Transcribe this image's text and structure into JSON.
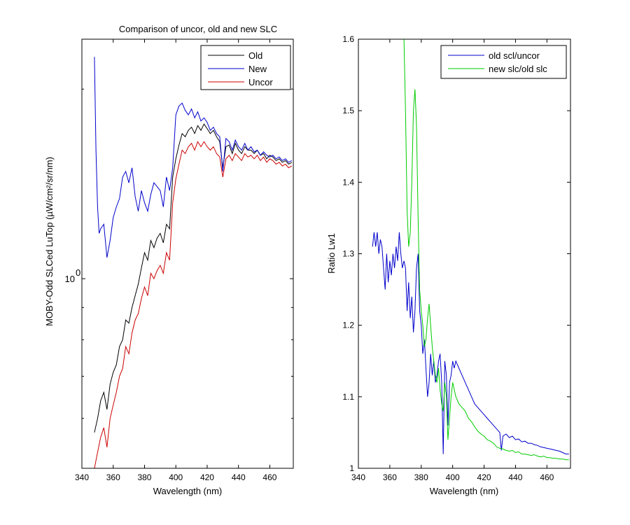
{
  "chart_data": [
    {
      "type": "line",
      "title": "Comparison of uncor, old and new SLC",
      "xlabel": "Wavelength (nm)",
      "ylabel": "MOBY-Odd SLCed LuTop (µW/cm²/sr/nm)",
      "yscale": "log",
      "xlim": [
        340,
        475
      ],
      "ylim": [
        0.5,
        2.4
      ],
      "x_ticks": [
        "340",
        "360",
        "380",
        "400",
        "420",
        "440",
        "460"
      ],
      "y_tick_base": "10",
      "y_tick_exp": "0",
      "y_tick_value": 1.0,
      "grid": false,
      "legend_position": "top-right",
      "series": [
        {
          "name": "Old",
          "color": "#000000",
          "x": [
            348,
            350,
            352,
            354,
            356,
            358,
            360,
            362,
            364,
            366,
            368,
            370,
            372,
            374,
            376,
            378,
            380,
            382,
            384,
            386,
            388,
            390,
            392,
            394,
            396,
            398,
            400,
            402,
            404,
            406,
            408,
            410,
            412,
            414,
            416,
            418,
            420,
            422,
            424,
            426,
            428,
            430,
            432,
            434,
            436,
            438,
            440,
            442,
            444,
            446,
            448,
            450,
            452,
            454,
            456,
            458,
            460,
            462,
            464,
            466,
            468,
            470,
            472,
            474
          ],
          "y": [
            0.57,
            0.6,
            0.64,
            0.66,
            0.62,
            0.68,
            0.71,
            0.73,
            0.78,
            0.8,
            0.86,
            0.85,
            0.9,
            0.94,
            0.98,
            1.04,
            1.1,
            1.07,
            1.15,
            1.12,
            1.16,
            1.18,
            1.14,
            1.22,
            1.2,
            1.45,
            1.55,
            1.63,
            1.7,
            1.68,
            1.72,
            1.74,
            1.7,
            1.75,
            1.72,
            1.76,
            1.73,
            1.7,
            1.72,
            1.68,
            1.65,
            1.5,
            1.62,
            1.63,
            1.58,
            1.64,
            1.6,
            1.58,
            1.62,
            1.6,
            1.6,
            1.58,
            1.6,
            1.57,
            1.58,
            1.55,
            1.57,
            1.56,
            1.54,
            1.55,
            1.53,
            1.54,
            1.52,
            1.53
          ]
        },
        {
          "name": "New",
          "color": "#0000cc",
          "x": [
            348,
            349,
            350,
            351,
            352,
            354,
            356,
            358,
            360,
            362,
            364,
            366,
            368,
            370,
            372,
            374,
            376,
            378,
            380,
            382,
            384,
            386,
            388,
            390,
            392,
            394,
            396,
            398,
            400,
            402,
            404,
            406,
            408,
            410,
            412,
            414,
            416,
            418,
            420,
            422,
            424,
            426,
            428,
            430,
            432,
            434,
            436,
            438,
            440,
            442,
            444,
            446,
            448,
            450,
            452,
            454,
            456,
            458,
            460,
            462,
            464,
            466,
            468,
            470,
            472,
            474
          ],
          "y": [
            2.25,
            1.6,
            1.3,
            1.18,
            1.2,
            1.22,
            1.08,
            1.15,
            1.25,
            1.3,
            1.34,
            1.45,
            1.48,
            1.42,
            1.5,
            1.35,
            1.28,
            1.38,
            1.32,
            1.28,
            1.36,
            1.42,
            1.4,
            1.38,
            1.3,
            1.45,
            1.38,
            1.5,
            1.82,
            1.88,
            1.9,
            1.85,
            1.82,
            1.86,
            1.8,
            1.84,
            1.78,
            1.8,
            1.77,
            1.72,
            1.74,
            1.7,
            1.68,
            1.48,
            1.67,
            1.65,
            1.6,
            1.66,
            1.62,
            1.6,
            1.64,
            1.6,
            1.62,
            1.59,
            1.6,
            1.57,
            1.59,
            1.57,
            1.56,
            1.57,
            1.55,
            1.56,
            1.54,
            1.55,
            1.53,
            1.54
          ]
        },
        {
          "name": "Uncor",
          "color": "#cc0000",
          "x": [
            348,
            350,
            352,
            354,
            356,
            358,
            360,
            362,
            364,
            366,
            368,
            370,
            372,
            374,
            376,
            378,
            380,
            382,
            384,
            386,
            388,
            390,
            392,
            394,
            396,
            398,
            400,
            402,
            404,
            406,
            408,
            410,
            412,
            414,
            416,
            418,
            420,
            422,
            424,
            426,
            428,
            430,
            432,
            434,
            436,
            438,
            440,
            442,
            444,
            446,
            448,
            450,
            452,
            454,
            456,
            458,
            460,
            462,
            464,
            466,
            468,
            470,
            472,
            474
          ],
          "y": [
            0.5,
            0.53,
            0.56,
            0.58,
            0.54,
            0.6,
            0.63,
            0.66,
            0.7,
            0.72,
            0.78,
            0.76,
            0.82,
            0.86,
            0.88,
            0.93,
            0.97,
            0.94,
            1.02,
            1.0,
            1.03,
            1.05,
            1.02,
            1.1,
            1.07,
            1.32,
            1.44,
            1.52,
            1.6,
            1.58,
            1.62,
            1.64,
            1.6,
            1.65,
            1.62,
            1.65,
            1.62,
            1.6,
            1.62,
            1.58,
            1.56,
            1.45,
            1.55,
            1.57,
            1.54,
            1.58,
            1.56,
            1.54,
            1.58,
            1.56,
            1.57,
            1.55,
            1.57,
            1.54,
            1.56,
            1.53,
            1.55,
            1.54,
            1.52,
            1.53,
            1.51,
            1.52,
            1.5,
            1.51
          ]
        }
      ]
    },
    {
      "type": "line",
      "title": "",
      "xlabel": "Wavelength (nm)",
      "ylabel": "Ratio Lw1",
      "xlim": [
        340,
        475
      ],
      "ylim": [
        1,
        1.6
      ],
      "x_ticks": [
        "340",
        "360",
        "380",
        "400",
        "420",
        "440",
        "460"
      ],
      "y_ticks": [
        "1",
        "1.1",
        "1.2",
        "1.3",
        "1.4",
        "1.5",
        "1.6"
      ],
      "grid": false,
      "legend_position": "top-right",
      "series": [
        {
          "name": "old scl/uncor",
          "color": "#0000cc",
          "x": [
            349,
            350,
            351,
            352,
            353,
            354,
            355,
            356,
            357,
            358,
            359,
            360,
            361,
            362,
            363,
            364,
            365,
            366,
            367,
            368,
            369,
            370,
            371,
            372,
            373,
            374,
            375,
            376,
            377,
            378,
            379,
            380,
            381,
            382,
            383,
            384,
            385,
            386,
            387,
            388,
            389,
            390,
            391,
            392,
            393,
            394,
            395,
            396,
            397,
            398,
            399,
            400,
            401,
            402,
            404,
            406,
            408,
            410,
            412,
            414,
            416,
            418,
            420,
            422,
            424,
            426,
            428,
            430,
            431,
            432,
            434,
            436,
            438,
            440,
            442,
            444,
            446,
            448,
            450,
            452,
            454,
            456,
            458,
            460,
            462,
            464,
            466,
            468,
            470,
            472,
            474
          ],
          "y": [
            1.31,
            1.33,
            1.31,
            1.33,
            1.3,
            1.32,
            1.31,
            1.28,
            1.25,
            1.3,
            1.26,
            1.29,
            1.27,
            1.3,
            1.28,
            1.31,
            1.29,
            1.33,
            1.3,
            1.28,
            1.29,
            1.28,
            1.22,
            1.26,
            1.21,
            1.24,
            1.19,
            1.22,
            1.28,
            1.3,
            1.22,
            1.2,
            1.16,
            1.18,
            1.14,
            1.1,
            1.12,
            1.16,
            1.13,
            1.15,
            1.12,
            1.13,
            1.15,
            1.16,
            1.12,
            1.02,
            1.15,
            1.13,
            1.06,
            1.12,
            1.13,
            1.15,
            1.14,
            1.15,
            1.14,
            1.13,
            1.12,
            1.11,
            1.1,
            1.09,
            1.085,
            1.08,
            1.075,
            1.07,
            1.065,
            1.06,
            1.055,
            1.05,
            1.025,
            1.045,
            1.048,
            1.043,
            1.045,
            1.04,
            1.041,
            1.037,
            1.038,
            1.035,
            1.035,
            1.033,
            1.032,
            1.03,
            1.029,
            1.028,
            1.027,
            1.026,
            1.025,
            1.024,
            1.022,
            1.02,
            1.02
          ]
        },
        {
          "name": "new slc/old slc",
          "color": "#00cc00",
          "x": [
            369,
            370,
            371,
            372,
            373,
            374,
            375,
            376,
            377,
            378,
            379,
            380,
            381,
            382,
            383,
            384,
            385,
            386,
            387,
            388,
            389,
            390,
            391,
            392,
            393,
            394,
            395,
            396,
            397,
            398,
            399,
            400,
            401,
            402,
            404,
            406,
            408,
            410,
            412,
            414,
            416,
            418,
            420,
            422,
            424,
            426,
            428,
            430,
            432,
            434,
            436,
            438,
            440,
            442,
            444,
            446,
            448,
            450,
            452,
            454,
            456,
            458,
            460,
            462,
            464,
            466,
            468,
            470,
            472,
            474
          ],
          "y": [
            1.6,
            1.5,
            1.36,
            1.31,
            1.33,
            1.4,
            1.5,
            1.53,
            1.48,
            1.35,
            1.25,
            1.22,
            1.2,
            1.17,
            1.18,
            1.21,
            1.23,
            1.2,
            1.17,
            1.15,
            1.13,
            1.12,
            1.14,
            1.11,
            1.09,
            1.08,
            1.12,
            1.1,
            1.04,
            1.07,
            1.1,
            1.12,
            1.11,
            1.1,
            1.09,
            1.085,
            1.08,
            1.07,
            1.065,
            1.058,
            1.052,
            1.048,
            1.045,
            1.04,
            1.038,
            1.035,
            1.03,
            1.028,
            1.027,
            1.025,
            1.024,
            1.025,
            1.022,
            1.023,
            1.02,
            1.02,
            1.019,
            1.018,
            1.019,
            1.017,
            1.016,
            1.017,
            1.015,
            1.015,
            1.014,
            1.014,
            1.013,
            1.013,
            1.012,
            1.012
          ]
        }
      ]
    }
  ]
}
